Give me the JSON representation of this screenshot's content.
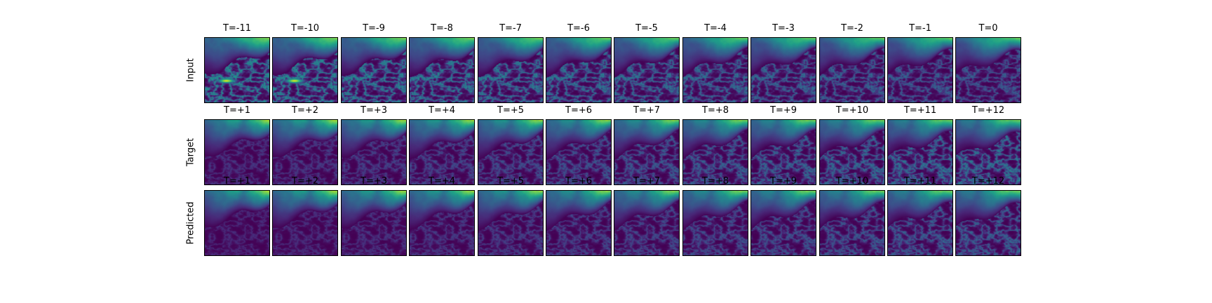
{
  "figure": {
    "colormap": "viridis",
    "colors": {
      "low": "#440154",
      "mid": "#21918c",
      "high": "#fde725"
    },
    "rows": [
      {
        "label": "Input",
        "panels": [
          "T=-11",
          "T=-10",
          "T=-9",
          "T=-8",
          "T=-7",
          "T=-6",
          "T=-5",
          "T=-4",
          "T=-3",
          "T=-2",
          "T=-1",
          "T=0"
        ]
      },
      {
        "label": "Target",
        "panels": [
          "T=+1",
          "T=+2",
          "T=+3",
          "T=+4",
          "T=+5",
          "T=+6",
          "T=+7",
          "T=+8",
          "T=+9",
          "T=+10",
          "T=+11",
          "T=+12"
        ]
      },
      {
        "label": "Predicted",
        "panels": [
          "T=+1",
          "T=+2",
          "T=+3",
          "T=+4",
          "T=+5",
          "T=+6",
          "T=+7",
          "T=+8",
          "T=+9",
          "T=+10",
          "T=+11",
          "T=+12"
        ]
      }
    ]
  }
}
